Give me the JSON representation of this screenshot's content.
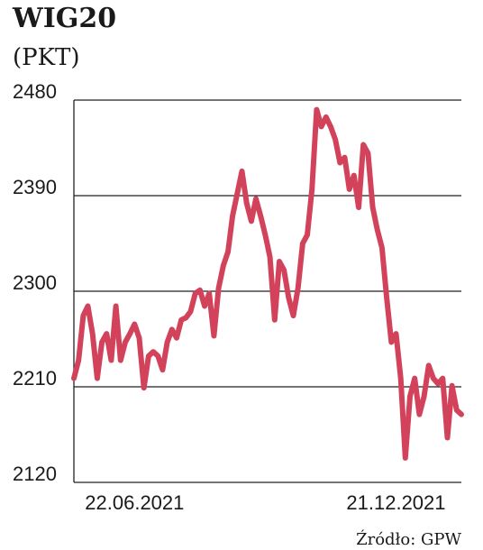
{
  "chart_data": {
    "type": "line",
    "title": "WIG20",
    "subtitle": "(PKT)",
    "source": "Źródło: GPW",
    "categories": [
      null,
      null,
      null,
      null,
      null,
      null,
      null,
      null,
      null,
      null,
      null,
      null,
      null,
      "22.06.2021",
      null,
      null,
      null,
      null,
      null,
      null,
      null,
      null,
      null,
      null,
      null,
      null,
      null,
      null,
      null,
      null,
      null,
      null,
      null,
      null,
      null,
      null,
      null,
      null,
      null,
      null,
      null,
      null,
      null,
      null,
      null,
      null,
      null,
      null,
      null,
      null,
      null,
      null,
      null,
      null,
      null,
      null,
      null,
      null,
      null,
      null,
      null,
      null,
      null,
      null,
      null,
      null,
      null,
      null,
      null,
      "21.12.2021",
      null,
      null,
      null,
      null,
      null,
      null,
      null,
      null,
      null,
      null,
      null,
      null,
      null,
      null
    ],
    "series": [
      {
        "name": "WIG20",
        "color": "#d2435b",
        "values": [
          2218,
          2235,
          2277,
          2286,
          2260,
          2218,
          2252,
          2260,
          2235,
          2286,
          2235,
          2252,
          2260,
          2269,
          2256,
          2209,
          2239,
          2243,
          2239,
          2226,
          2252,
          2264,
          2256,
          2273,
          2275,
          2281,
          2298,
          2301,
          2286,
          2298,
          2258,
          2303,
          2324,
          2337,
          2371,
          2392,
          2413,
          2383,
          2366,
          2387,
          2371,
          2353,
          2332,
          2273,
          2328,
          2320,
          2294,
          2277,
          2303,
          2345,
          2353,
          2396,
          2471,
          2455,
          2464,
          2455,
          2443,
          2421,
          2426,
          2396,
          2409,
          2379,
          2438,
          2430,
          2379,
          2358,
          2341,
          2294,
          2252,
          2260,
          2218,
          2143,
          2201,
          2218,
          2184,
          2201,
          2230,
          2218,
          2213,
          2218,
          2162,
          2211,
          2188,
          2184
        ]
      }
    ],
    "ylim": [
      2120,
      2480
    ],
    "yticks": [
      2120,
      2210,
      2300,
      2390,
      2480
    ],
    "grid": true
  }
}
